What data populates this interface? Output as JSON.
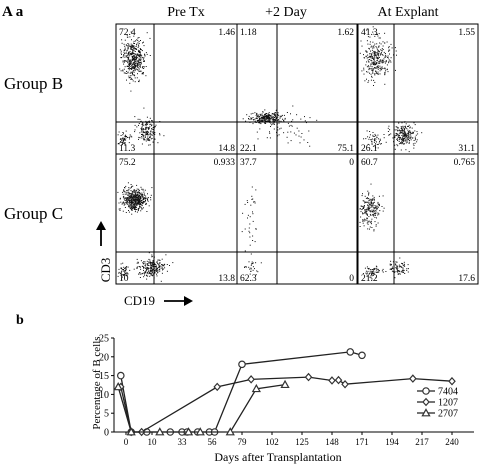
{
  "figure": {
    "panel_a_label": "A a",
    "panel_b_label": "b",
    "columns": [
      "Pre Tx",
      "+2 Day",
      "At Explant"
    ],
    "rows": [
      "Group B",
      "Group C"
    ],
    "y_axis_label": "CD3",
    "x_axis_label": "CD19"
  },
  "flow_panels": [
    {
      "row": 0,
      "col": 0,
      "quadrants": {
        "ul": "72.4",
        "ur": "1.46",
        "ll": "11.3",
        "lr": "14.8"
      }
    },
    {
      "row": 0,
      "col": 1,
      "quadrants": {
        "ul": "1.18",
        "ur": "1.62",
        "ll": "22.1",
        "lr": "75.1"
      }
    },
    {
      "row": 0,
      "col": 2,
      "quadrants": {
        "ul": "41.3",
        "ur": "1.55",
        "ll": "26.1",
        "lr": "31.1"
      }
    },
    {
      "row": 1,
      "col": 0,
      "quadrants": {
        "ul": "75.2",
        "ur": "0.933",
        "ll": "10",
        "lr": "13.8"
      }
    },
    {
      "row": 1,
      "col": 1,
      "quadrants": {
        "ul": "37.7",
        "ur": "0",
        "ll": "62.3",
        "lr": "0"
      }
    },
    {
      "row": 1,
      "col": 2,
      "quadrants": {
        "ul": "60.7",
        "ur": "0.765",
        "ll": "21.2",
        "lr": "17.6"
      }
    }
  ],
  "chart_data": {
    "type": "line",
    "title": "",
    "xlabel": "Days after Transplantation",
    "ylabel": "Percentage of B cells",
    "xlim": [
      -5,
      240
    ],
    "ylim": [
      0,
      25
    ],
    "x_ticks": [
      "0",
      "10",
      "33",
      "56",
      "79",
      "102",
      "125",
      "148",
      "171",
      "194",
      "217",
      "240"
    ],
    "y_ticks": [
      "0",
      "5",
      "10",
      "15",
      "20",
      "25"
    ],
    "legend_position": "right",
    "series": [
      {
        "name": "7404",
        "marker": "circle",
        "points": [
          [
            -2,
            15
          ],
          [
            2,
            0
          ],
          [
            8,
            0
          ],
          [
            24,
            0
          ],
          [
            33,
            0
          ],
          [
            37,
            0
          ],
          [
            45,
            0
          ],
          [
            54,
            0
          ],
          [
            58,
            0
          ],
          [
            79,
            18
          ],
          [
            162,
            21.3
          ],
          [
            171,
            20.4
          ]
        ]
      },
      {
        "name": "1207",
        "marker": "diamond",
        "points": [
          [
            -2,
            12
          ],
          [
            2,
            0
          ],
          [
            6,
            0
          ],
          [
            60,
            12
          ],
          [
            86,
            14
          ],
          [
            130,
            14.6
          ],
          [
            148,
            13.7
          ],
          [
            153,
            13.8
          ],
          [
            158,
            12.7
          ],
          [
            210,
            14.2
          ],
          [
            240,
            13.5
          ]
        ]
      },
      {
        "name": "2707",
        "marker": "triangle",
        "points": [
          [
            -3,
            12
          ],
          [
            2,
            0
          ],
          [
            16,
            0
          ],
          [
            38,
            0
          ],
          [
            47,
            0
          ],
          [
            70,
            0
          ],
          [
            90,
            11.5
          ],
          [
            112,
            12.6
          ]
        ]
      }
    ]
  }
}
